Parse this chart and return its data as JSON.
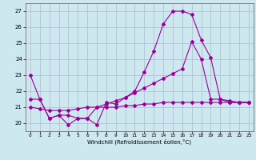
{
  "xlabel": "Windchill (Refroidissement éolien,°C)",
  "bg_color": "#cde8ee",
  "line_color": "#990099",
  "grid_color": "#aabbcc",
  "ylim": [
    19.5,
    27.5
  ],
  "xlim": [
    -0.5,
    23.5
  ],
  "yticks": [
    20,
    21,
    22,
    23,
    24,
    25,
    26,
    27
  ],
  "xticks": [
    0,
    1,
    2,
    3,
    4,
    5,
    6,
    7,
    8,
    9,
    10,
    11,
    12,
    13,
    14,
    15,
    16,
    17,
    18,
    19,
    20,
    21,
    22,
    23
  ],
  "line1_x": [
    0,
    1,
    2,
    3,
    4,
    5,
    6,
    7,
    8,
    9,
    10,
    11,
    12,
    13,
    14,
    15,
    16,
    17,
    18,
    19,
    20,
    21,
    22,
    23
  ],
  "line1_y": [
    23.0,
    21.5,
    20.3,
    20.5,
    19.9,
    20.3,
    20.3,
    19.9,
    21.3,
    21.2,
    21.6,
    22.0,
    23.2,
    24.5,
    26.2,
    27.0,
    27.0,
    26.8,
    25.2,
    24.1,
    21.5,
    21.3,
    21.3,
    21.3
  ],
  "line2_x": [
    0,
    1,
    2,
    3,
    4,
    5,
    6,
    7,
    8,
    9,
    10,
    11,
    12,
    13,
    14,
    15,
    16,
    17,
    18,
    19,
    20,
    21,
    22,
    23
  ],
  "line2_y": [
    21.5,
    21.5,
    20.3,
    20.5,
    20.5,
    20.3,
    20.3,
    21.0,
    21.2,
    21.4,
    21.6,
    21.9,
    22.2,
    22.5,
    22.8,
    23.1,
    23.4,
    25.1,
    24.0,
    21.5,
    21.5,
    21.4,
    21.3,
    21.3
  ],
  "line3_x": [
    0,
    1,
    2,
    3,
    4,
    5,
    6,
    7,
    8,
    9,
    10,
    11,
    12,
    13,
    14,
    15,
    16,
    17,
    18,
    19,
    20,
    21,
    22,
    23
  ],
  "line3_y": [
    21.0,
    20.9,
    20.8,
    20.8,
    20.8,
    20.9,
    21.0,
    21.0,
    21.0,
    21.0,
    21.1,
    21.1,
    21.2,
    21.2,
    21.3,
    21.3,
    21.3,
    21.3,
    21.3,
    21.3,
    21.3,
    21.3,
    21.3,
    21.3
  ]
}
